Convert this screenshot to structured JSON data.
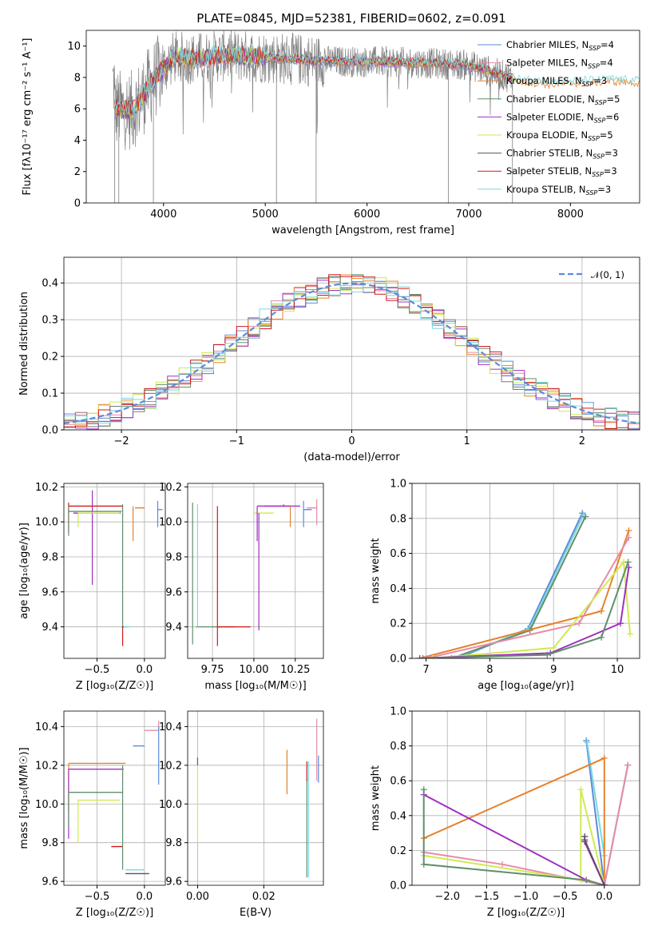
{
  "title": "PLATE=0845, MJD=52381, FIBERID=0602, z=0.091",
  "model_colors": [
    "#5b8bd9",
    "#e88aa8",
    "#e6822c",
    "#5f8f6a",
    "#a030c0",
    "#d0ea50",
    "#7a7a7a",
    "#d0181c",
    "#7dd8e0"
  ],
  "chart_data": [
    {
      "id": "spectrum",
      "type": "line",
      "xlabel": "wavelength [Angstrom, rest frame]",
      "ylabel": "Flux [fλ10⁻¹⁷ erg cm⁻² s⁻¹ A⁻¹]",
      "xlim": [
        3240,
        8680
      ],
      "ylim": [
        0,
        11
      ],
      "xticks": [
        4000,
        5000,
        6000,
        7000,
        8000
      ],
      "yticks": [
        0,
        2,
        4,
        6,
        8,
        10
      ],
      "legend_position": "right",
      "series": [
        {
          "name": "Chabrier MILES, N",
          "sub": "SSP",
          "tail": "=4",
          "color": "#5b8bd9",
          "style": "line"
        },
        {
          "name": "Salpeter MILES, N",
          "sub": "SSP",
          "tail": "=4",
          "color": "#e88aa8",
          "style": "line"
        },
        {
          "name": "Kroupa MILES, N",
          "sub": "SSP",
          "tail": "=3",
          "color": "#e6822c",
          "style": "line"
        },
        {
          "name": "Chabrier ELODIE, N",
          "sub": "SSP",
          "tail": "=5",
          "color": "#5f8f6a",
          "style": "line"
        },
        {
          "name": "Salpeter ELODIE, N",
          "sub": "SSP",
          "tail": "=6",
          "color": "#a030c0",
          "style": "line"
        },
        {
          "name": "Kroupa ELODIE, N",
          "sub": "SSP",
          "tail": "=5",
          "color": "#d0ea50",
          "style": "line"
        },
        {
          "name": "Chabrier STELIB, N",
          "sub": "SSP",
          "tail": "=3",
          "color": "#555555",
          "style": "line"
        },
        {
          "name": "Salpeter STELIB, N",
          "sub": "SSP",
          "tail": "=3",
          "color": "#d0181c",
          "style": "line"
        },
        {
          "name": "Kroupa STELIB, N",
          "sub": "SSP",
          "tail": "=3",
          "color": "#7dd8e0",
          "style": "line"
        }
      ],
      "continuum": {
        "x": [
          3520,
          3700,
          3900,
          4100,
          4300,
          4600,
          5000,
          5400,
          5800,
          6200,
          6600,
          7000,
          7300,
          7500,
          7800,
          8100,
          8400,
          8680
        ],
        "y": [
          6.0,
          5.9,
          7.8,
          9.3,
          9.2,
          9.4,
          9.3,
          9.1,
          9.0,
          9.0,
          8.9,
          8.8,
          8.2,
          7.8,
          7.6,
          7.7,
          7.8,
          7.7
        ]
      }
    },
    {
      "id": "residuals",
      "type": "histogram",
      "xlabel": "(data-model)/error",
      "ylabel": "Normed distribution",
      "xlim": [
        -2.5,
        2.5
      ],
      "ylim": [
        0,
        0.47
      ],
      "xticks": [
        -2,
        -1,
        0,
        1,
        2
      ],
      "yticks": [
        0.0,
        0.1,
        0.2,
        0.3,
        0.4
      ],
      "legend": "𝒩(0, 1)",
      "legend_position": "top-right",
      "gaussian": {
        "mean": 0,
        "sigma": 1,
        "color": "#5b8bd9"
      }
    },
    {
      "id": "age-vs-Z",
      "type": "errorbar",
      "xlabel": "Z [log₁₀(Z/Z☉)]",
      "ylabel": "age  [log₁₀(age/yr)]",
      "xlim": [
        -0.85,
        0.22
      ],
      "ylim": [
        9.22,
        10.22
      ],
      "xticks": [
        -0.5,
        0.0
      ],
      "yticks": [
        9.4,
        9.6,
        9.8,
        10.0,
        10.2
      ],
      "points": [
        {
          "x": -0.23,
          "y": 9.4,
          "xerr": [
            0.01,
            0.05
          ],
          "yerr": [
            0.0,
            0.7
          ],
          "color": "#5f8f6a"
        },
        {
          "x": -0.23,
          "y": 9.4,
          "xerr": [
            0.0,
            0.01
          ],
          "yerr": [
            0.11,
            0.0
          ],
          "color": "#d0181c"
        },
        {
          "x": -0.22,
          "y": 9.4,
          "xerr": [
            0.0,
            0.07
          ],
          "yerr": [
            0.0,
            0.0
          ],
          "color": "#7dd8e0"
        },
        {
          "x": -0.55,
          "y": 10.05,
          "xerr": [
            0.2,
            0.3
          ],
          "yerr": [
            0.41,
            0.13
          ],
          "color": "#a030c0"
        },
        {
          "x": -0.8,
          "y": 10.09,
          "xerr": [
            0.0,
            0.57
          ],
          "yerr": [
            0.15,
            0.02
          ],
          "color": "#d0181c"
        },
        {
          "x": -0.8,
          "y": 10.06,
          "xerr": [
            0.0,
            0.56
          ],
          "yerr": [
            0.14,
            0.03
          ],
          "color": "#5f8f6a"
        },
        {
          "x": -0.7,
          "y": 10.05,
          "xerr": [
            0.0,
            0.44
          ],
          "yerr": [
            0.08,
            0.0
          ],
          "color": "#d0ea50"
        },
        {
          "x": -0.12,
          "y": 10.09,
          "xerr": [
            0.0,
            0.0
          ],
          "yerr": [
            0.2,
            0.0
          ],
          "color": "#e6822c"
        },
        {
          "x": 0.0,
          "y": 10.08,
          "xerr": [
            0.1,
            0.0
          ],
          "yerr": [
            0.0,
            0.0
          ],
          "color": "#e6822c"
        },
        {
          "x": 0.14,
          "y": 10.07,
          "xerr": [
            0.0,
            0.05
          ],
          "yerr": [
            0.1,
            0.05
          ],
          "color": "#5b8bd9"
        }
      ]
    },
    {
      "id": "age-vs-mass",
      "type": "errorbar",
      "xlabel": "mass [log₁₀(M/M☉)]",
      "ylabel": "",
      "xlim": [
        9.6,
        10.42
      ],
      "ylim": [
        9.22,
        10.22
      ],
      "xticks": [
        9.75,
        10.0,
        10.25
      ],
      "yticks": [
        9.4,
        9.6,
        9.8,
        10.0,
        10.2
      ],
      "points": [
        {
          "x": 9.82,
          "y": 9.4,
          "xerr": [
            0.17,
            0.06
          ],
          "yerr": [
            0.0,
            0.0
          ],
          "color": "#5f8f6a"
        },
        {
          "x": 9.78,
          "y": 9.4,
          "xerr": [
            0.0,
            0.2
          ],
          "yerr": [
            0.11,
            0.69
          ],
          "color": "#d0181c"
        },
        {
          "x": 9.66,
          "y": 9.4,
          "xerr": [
            0.0,
            0.0
          ],
          "yerr": [
            0.0,
            0.7
          ],
          "color": "#7dd8e0"
        },
        {
          "x": 9.63,
          "y": 10.0,
          "xerr": [
            0.0,
            0.0
          ],
          "yerr": [
            0.7,
            0.11
          ],
          "color": "#5f8f6a"
        },
        {
          "x": 10.18,
          "y": 10.09,
          "xerr": [
            0.12,
            0.1
          ],
          "yerr": [
            0.0,
            0.01
          ],
          "color": "#a030c0"
        },
        {
          "x": 10.05,
          "y": 10.05,
          "xerr": [
            0.05,
            0.07
          ],
          "yerr": [
            0.0,
            0.0
          ],
          "color": "#d0ea50"
        },
        {
          "x": 10.02,
          "y": 10.09,
          "xerr": [
            0.0,
            0.2
          ],
          "yerr": [
            0.2,
            0.0
          ],
          "color": "#a030c0"
        },
        {
          "x": 10.22,
          "y": 10.09,
          "xerr": [
            0.0,
            0.0
          ],
          "yerr": [
            0.12,
            0.0
          ],
          "color": "#e6822c"
        },
        {
          "x": 10.3,
          "y": 10.07,
          "xerr": [
            0.0,
            0.05
          ],
          "yerr": [
            0.1,
            0.05
          ],
          "color": "#5b8bd9"
        },
        {
          "x": 10.38,
          "y": 10.08,
          "xerr": [
            0.06,
            0.0
          ],
          "yerr": [
            0.1,
            0.05
          ],
          "color": "#e88aa8"
        },
        {
          "x": 10.03,
          "y": 10.05,
          "xerr": [
            0.0,
            0.0
          ],
          "yerr": [
            0.67,
            0.0
          ],
          "color": "#a030c0"
        }
      ]
    },
    {
      "id": "weight-vs-age",
      "type": "line",
      "xlabel": "age  [log₁₀(age/yr)]",
      "ylabel": "mass weight",
      "xlim": [
        6.78,
        10.35
      ],
      "ylim": [
        0,
        1
      ],
      "xticks": [
        7,
        8,
        9,
        10
      ],
      "yticks": [
        0.0,
        0.2,
        0.4,
        0.6,
        0.8,
        1.0
      ],
      "series": [
        {
          "color": "#5b8bd9",
          "x": [
            7.5,
            8.6,
            9.45
          ],
          "y": [
            0.0,
            0.17,
            0.83
          ]
        },
        {
          "color": "#7dd8e0",
          "x": [
            7.45,
            8.62,
            9.47
          ],
          "y": [
            0.0,
            0.17,
            0.82
          ]
        },
        {
          "color": "#5f8f6a",
          "x": [
            7.4,
            8.63,
            9.5
          ],
          "y": [
            0.0,
            0.16,
            0.81
          ]
        },
        {
          "color": "#e6822c",
          "x": [
            6.9,
            9.75,
            10.18
          ],
          "y": [
            0.0,
            0.27,
            0.73
          ]
        },
        {
          "color": "#e88aa8",
          "x": [
            7.0,
            9.4,
            10.18
          ],
          "y": [
            0.0,
            0.2,
            0.69
          ]
        },
        {
          "color": "#d0ea50",
          "x": [
            7.1,
            9.0,
            10.1,
            10.2
          ],
          "y": [
            0.0,
            0.06,
            0.55,
            0.14
          ]
        },
        {
          "color": "#a030c0",
          "x": [
            6.9,
            8.95,
            10.05,
            10.18
          ],
          "y": [
            0.0,
            0.03,
            0.2,
            0.52
          ]
        },
        {
          "color": "#5f8f6a",
          "x": [
            6.95,
            8.9,
            9.75,
            10.17
          ],
          "y": [
            0.0,
            0.02,
            0.12,
            0.55
          ]
        }
      ]
    },
    {
      "id": "mass-vs-Z",
      "type": "errorbar",
      "xlabel": "Z [log₁₀(Z/Z☉)]",
      "ylabel": "mass [log₁₀(M/M☉)]",
      "xlim": [
        -0.85,
        0.22
      ],
      "ylim": [
        9.58,
        10.48
      ],
      "xticks": [
        -0.5,
        0.0
      ],
      "yticks": [
        9.6,
        9.8,
        10.0,
        10.2,
        10.4
      ],
      "points": [
        {
          "x": -0.8,
          "y": 10.21,
          "xerr": [
            0.0,
            0.6
          ],
          "yerr": [
            0.25,
            0.0
          ],
          "color": "#e6822c"
        },
        {
          "x": -0.8,
          "y": 10.18,
          "xerr": [
            0.0,
            0.58
          ],
          "yerr": [
            0.36,
            0.0
          ],
          "color": "#a030c0"
        },
        {
          "x": -0.8,
          "y": 10.06,
          "xerr": [
            0.0,
            0.57
          ],
          "yerr": [
            0.18,
            0.0
          ],
          "color": "#5f8f6a"
        },
        {
          "x": -0.7,
          "y": 10.02,
          "xerr": [
            0.0,
            0.44
          ],
          "yerr": [
            0.22,
            0.0
          ],
          "color": "#d0ea50"
        },
        {
          "x": -0.23,
          "y": 9.78,
          "xerr": [
            0.12,
            0.0
          ],
          "yerr": [
            0.0,
            0.0
          ],
          "color": "#d0181c"
        },
        {
          "x": -0.23,
          "y": 9.66,
          "xerr": [
            0.0,
            0.0
          ],
          "yerr": [
            0.0,
            0.54
          ],
          "color": "#5f8f6a"
        },
        {
          "x": -0.2,
          "y": 9.66,
          "xerr": [
            0.0,
            0.2
          ],
          "yerr": [
            0.0,
            0.0
          ],
          "color": "#7dd8e0"
        },
        {
          "x": -0.2,
          "y": 9.64,
          "xerr": [
            0.0,
            0.25
          ],
          "yerr": [
            0.0,
            0.0
          ],
          "color": "#555555"
        },
        {
          "x": 0.0,
          "y": 10.3,
          "xerr": [
            0.12,
            0.0
          ],
          "yerr": [
            0.0,
            0.0
          ],
          "color": "#5b8bd9"
        },
        {
          "x": 0.15,
          "y": 10.38,
          "xerr": [
            0.15,
            0.0
          ],
          "yerr": [
            0.0,
            0.05
          ],
          "color": "#e88aa8"
        },
        {
          "x": 0.15,
          "y": 10.3,
          "xerr": [
            0.0,
            0.0
          ],
          "yerr": [
            0.2,
            0.1
          ],
          "color": "#5b8bd9"
        }
      ]
    },
    {
      "id": "mass-vs-ebv",
      "type": "errorbar",
      "xlabel": "E(B-V)",
      "ylabel": "",
      "xlim": [
        -0.003,
        0.038
      ],
      "ylim": [
        9.58,
        10.48
      ],
      "xticks": [
        0.0,
        0.02
      ],
      "yticks": [
        9.6,
        9.8,
        10.0,
        10.2,
        10.4
      ],
      "points": [
        {
          "x": 0.0,
          "y": 10.2,
          "xerr": [
            0.0,
            0.0
          ],
          "yerr": [
            0.4,
            0.04
          ],
          "color": "#d0ea50"
        },
        {
          "x": 0.0,
          "y": 10.22,
          "xerr": [
            0.0,
            0.0
          ],
          "yerr": [
            0.02,
            0.02
          ],
          "color": "#a030c0"
        },
        {
          "x": 0.027,
          "y": 10.2,
          "xerr": [
            0.0,
            0.0
          ],
          "yerr": [
            0.15,
            0.08
          ],
          "color": "#e6822c"
        },
        {
          "x": 0.033,
          "y": 10.0,
          "xerr": [
            0.0,
            0.0
          ],
          "yerr": [
            0.38,
            0.13
          ],
          "color": "#5f8f6a"
        },
        {
          "x": 0.0335,
          "y": 9.9,
          "xerr": [
            0.0,
            0.0
          ],
          "yerr": [
            0.28,
            0.32
          ],
          "color": "#7dd8e0"
        },
        {
          "x": 0.033,
          "y": 10.12,
          "xerr": [
            0.0,
            0.0
          ],
          "yerr": [
            0.0,
            0.1
          ],
          "color": "#d0181c"
        },
        {
          "x": 0.036,
          "y": 10.3,
          "xerr": [
            0.0,
            0.0
          ],
          "yerr": [
            0.18,
            0.14
          ],
          "color": "#e88aa8"
        },
        {
          "x": 0.0365,
          "y": 10.25,
          "xerr": [
            0.0,
            0.0
          ],
          "yerr": [
            0.14,
            0.0
          ],
          "color": "#5b8bd9"
        }
      ]
    },
    {
      "id": "weight-vs-Z",
      "type": "line",
      "xlabel": "Z [log₁₀(Z/Z☉)]",
      "ylabel": "mass weight",
      "xlim": [
        -2.45,
        0.45
      ],
      "ylim": [
        0,
        1
      ],
      "xticks": [
        -2.0,
        -1.5,
        -1.0,
        -0.5,
        0.0
      ],
      "yticks": [
        0.0,
        0.2,
        0.4,
        0.6,
        0.8,
        1.0
      ],
      "series": [
        {
          "color": "#5b8bd9",
          "x": [
            -0.23,
            0.0,
            0.3
          ],
          "y": [
            0.83,
            0.0,
            0.69
          ]
        },
        {
          "color": "#7dd8e0",
          "x": [
            -0.22,
            0.0
          ],
          "y": [
            0.82,
            0.17
          ]
        },
        {
          "color": "#e6822c",
          "x": [
            -2.3,
            0.0,
            0.0
          ],
          "y": [
            0.27,
            0.73,
            0.0
          ]
        },
        {
          "color": "#e88aa8",
          "x": [
            -2.3,
            -1.3,
            0.0,
            0.3
          ],
          "y": [
            0.19,
            0.12,
            0.0,
            0.69
          ]
        },
        {
          "color": "#d0ea50",
          "x": [
            -2.3,
            -0.3,
            -0.3,
            0.0
          ],
          "y": [
            0.17,
            0.03,
            0.55,
            0.0
          ]
        },
        {
          "color": "#a030c0",
          "x": [
            -2.3,
            -0.23,
            0.0
          ],
          "y": [
            0.52,
            0.03,
            0.0
          ]
        },
        {
          "color": "#5f8f6a",
          "x": [
            -2.3,
            -2.3,
            -0.23,
            0.0
          ],
          "y": [
            0.55,
            0.12,
            0.03,
            0.0
          ]
        },
        {
          "color": "#555555",
          "x": [
            -0.25,
            -0.25,
            0.0
          ],
          "y": [
            0.28,
            0.26,
            0.0
          ]
        },
        {
          "color": "#7a3a8a",
          "x": [
            -0.25,
            0.0
          ],
          "y": [
            0.25,
            0.0
          ]
        }
      ]
    }
  ]
}
